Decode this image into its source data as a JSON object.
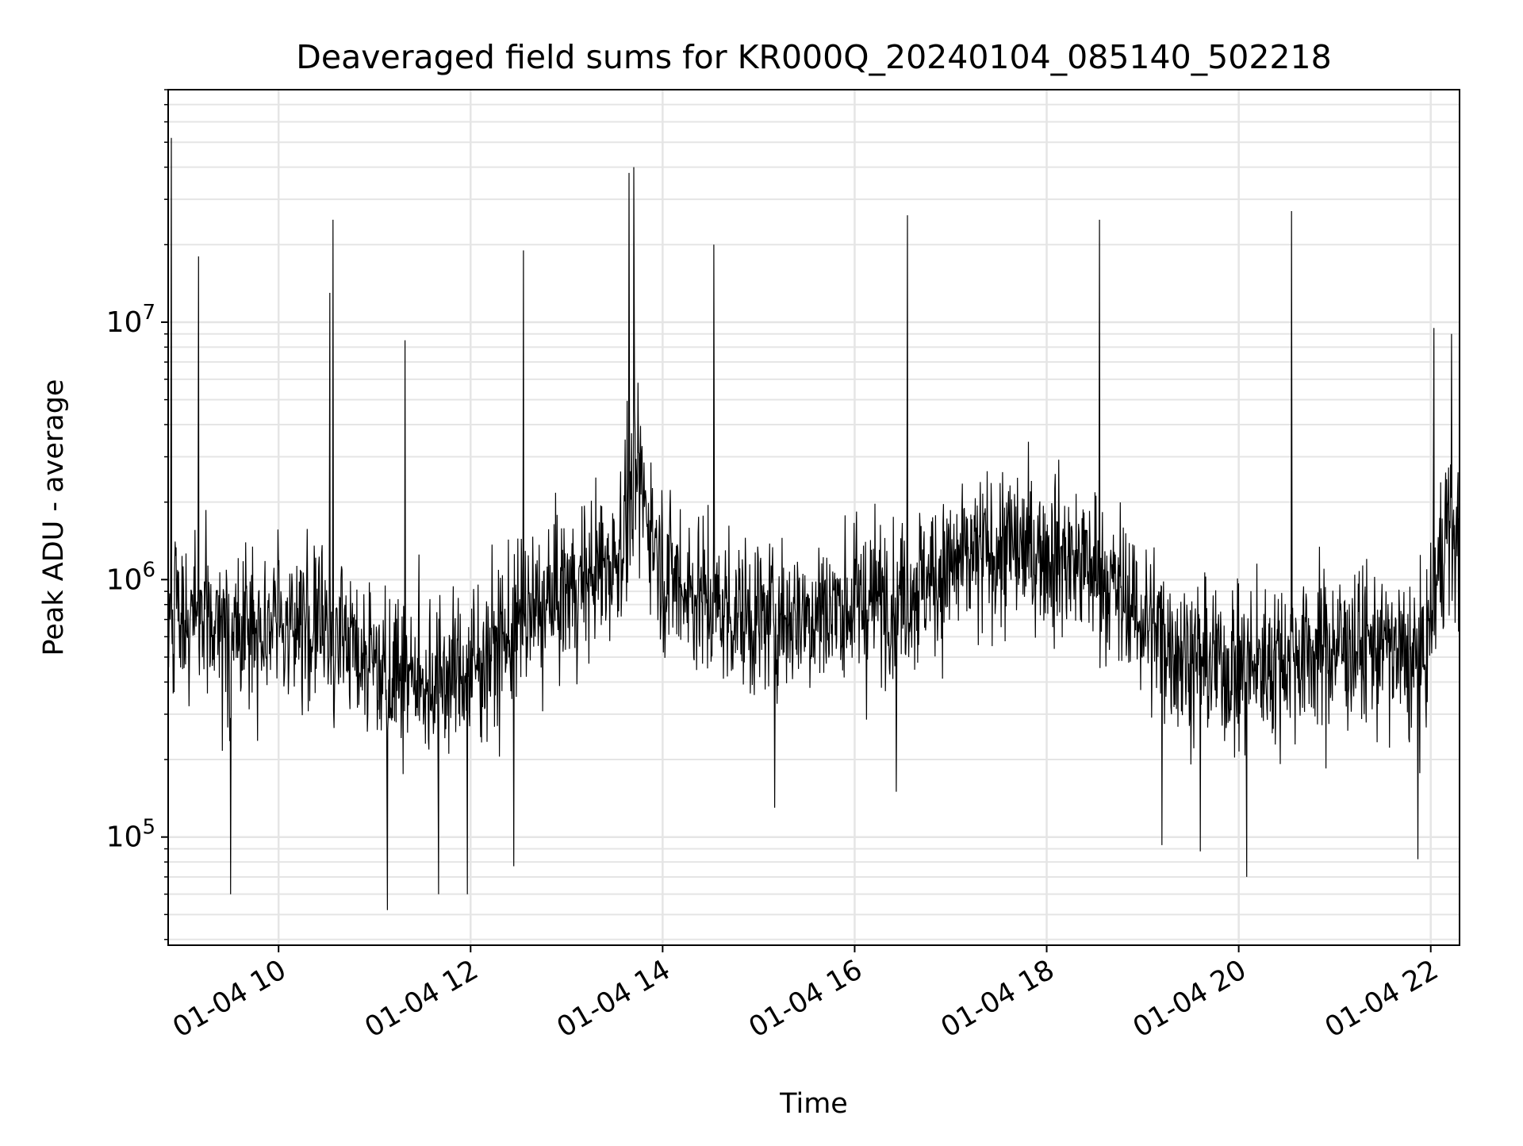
{
  "chart_data": {
    "type": "line",
    "title": "Deaveraged field sums for KR000Q_20240104_085140_502218",
    "xlabel": "Time",
    "ylabel": "Peak ADU - average",
    "yscale": "log",
    "grid": true,
    "line_color": "#000000",
    "grid_color": "#e5e5e5",
    "xlim": [
      "2024-01-04 08:51",
      "2024-01-04 22:18"
    ],
    "ylim": [
      38000,
      80000000
    ],
    "x_ticks": [
      {
        "value": "2024-01-04 10:00",
        "label": "01-04 10"
      },
      {
        "value": "2024-01-04 12:00",
        "label": "01-04 12"
      },
      {
        "value": "2024-01-04 14:00",
        "label": "01-04 14"
      },
      {
        "value": "2024-01-04 16:00",
        "label": "01-04 16"
      },
      {
        "value": "2024-01-04 18:00",
        "label": "01-04 18"
      },
      {
        "value": "2024-01-04 20:00",
        "label": "01-04 20"
      },
      {
        "value": "2024-01-04 22:00",
        "label": "01-04 22"
      }
    ],
    "y_ticks": [
      {
        "value": 100000,
        "base": "10",
        "exp": "5"
      },
      {
        "value": 1000000,
        "base": "10",
        "exp": "6"
      },
      {
        "value": 10000000,
        "base": "10",
        "exp": "7"
      }
    ],
    "series": [
      {
        "description": "envelope of dense fluctuating signal (approx. median values by time)",
        "x": [
          "2024-01-04 08:52",
          "2024-01-04 09:30",
          "2024-01-04 10:00",
          "2024-01-04 10:30",
          "2024-01-04 11:00",
          "2024-01-04 11:30",
          "2024-01-04 12:00",
          "2024-01-04 12:30",
          "2024-01-04 13:00",
          "2024-01-04 13:30",
          "2024-01-04 13:45",
          "2024-01-04 14:00",
          "2024-01-04 14:30",
          "2024-01-04 15:00",
          "2024-01-04 15:30",
          "2024-01-04 16:00",
          "2024-01-04 16:30",
          "2024-01-04 17:00",
          "2024-01-04 17:30",
          "2024-01-04 18:00",
          "2024-01-04 18:30",
          "2024-01-04 19:00",
          "2024-01-04 19:30",
          "2024-01-04 20:00",
          "2024-01-04 20:30",
          "2024-01-04 21:00",
          "2024-01-04 21:30",
          "2024-01-04 21:55",
          "2024-01-04 22:10",
          "2024-01-04 22:18"
        ],
        "values": [
          800000,
          600000,
          700000,
          650000,
          500000,
          400000,
          450000,
          650000,
          900000,
          1200000,
          2500000,
          1100000,
          800000,
          700000,
          750000,
          800000,
          900000,
          1100000,
          1300000,
          1300000,
          1100000,
          700000,
          500000,
          450000,
          500000,
          550000,
          550000,
          450000,
          1700000,
          1300000
        ]
      },
      {
        "description": "notable spikes",
        "x": [
          "2024-01-04 08:53",
          "2024-01-04 09:10",
          "2024-01-04 10:32",
          "2024-01-04 10:34",
          "2024-01-04 11:19",
          "2024-01-04 12:33",
          "2024-01-04 13:39",
          "2024-01-04 13:42",
          "2024-01-04 14:32",
          "2024-01-04 16:33",
          "2024-01-04 18:33",
          "2024-01-04 20:33",
          "2024-01-04 22:02",
          "2024-01-04 22:13"
        ],
        "values": [
          52000000,
          18000000,
          13000000,
          25000000,
          8500000,
          19000000,
          38000000,
          40000000,
          20000000,
          26000000,
          25000000,
          27000000,
          9500000,
          9000000
        ]
      },
      {
        "description": "notable dips",
        "x": [
          "2024-01-04 09:30",
          "2024-01-04 11:08",
          "2024-01-04 11:40",
          "2024-01-04 11:58",
          "2024-01-04 12:27",
          "2024-01-04 15:10",
          "2024-01-04 16:26",
          "2024-01-04 19:12",
          "2024-01-04 19:36",
          "2024-01-04 20:05",
          "2024-01-04 21:52"
        ],
        "values": [
          60000,
          52000,
          60000,
          60000,
          77000,
          130000,
          150000,
          93000,
          88000,
          70000,
          82000
        ]
      }
    ]
  }
}
